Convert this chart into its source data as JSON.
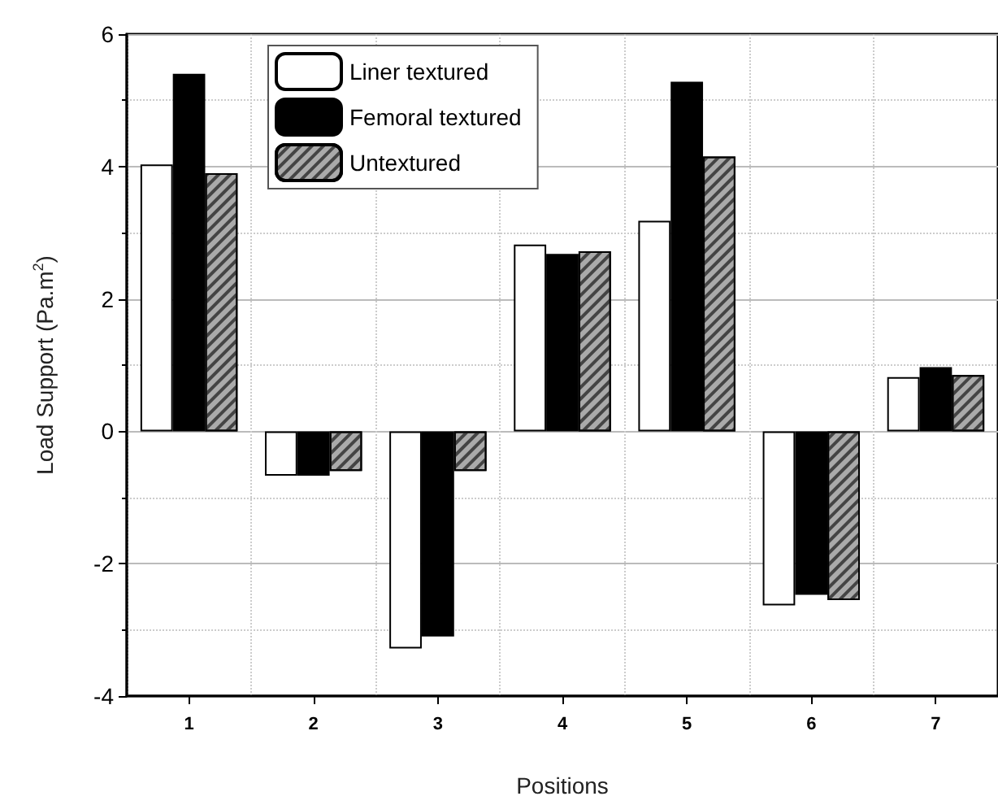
{
  "chart_data": {
    "type": "bar",
    "xlabel": "Positions",
    "ylabel": "Load Support (Pa.m$^{2}$)",
    "categories": [
      "1",
      "2",
      "3",
      "4",
      "5",
      "6",
      "7"
    ],
    "series": [
      {
        "name": "Liner textured",
        "color": "#ffffff",
        "values": [
          4.03,
          -0.67,
          -3.28,
          2.82,
          3.18,
          -2.63,
          0.82
        ]
      },
      {
        "name": "Femoral textured",
        "color": "#000000",
        "values": [
          5.4,
          -0.67,
          -3.1,
          2.68,
          5.28,
          -2.47,
          0.97
        ]
      },
      {
        "name": "Untextured",
        "color": "#aaaaaa",
        "values": [
          3.9,
          -0.6,
          -0.6,
          2.72,
          4.15,
          -2.55,
          0.85
        ]
      }
    ],
    "ylim": [
      -4,
      6
    ],
    "yticks": [
      -4,
      -2,
      0,
      2,
      4,
      6
    ],
    "grid": true,
    "legend": "top left"
  }
}
